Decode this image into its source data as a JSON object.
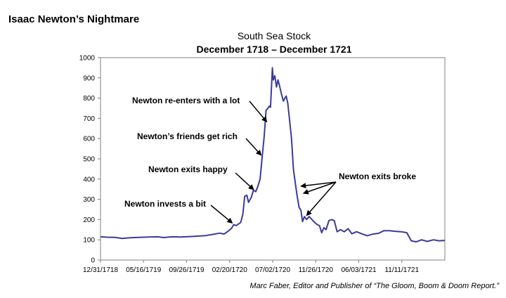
{
  "page": {
    "heading": "Isaac Newton’s Nightmare",
    "credit": "Marc Faber, Editor and Publisher of “The Gloom, Boom & Doom Report.”"
  },
  "chart_data": {
    "type": "line",
    "title": "South Sea Stock",
    "subtitle": "December 1718 – December 1721",
    "xlabel": "",
    "ylabel": "",
    "x_start": "1718-12-31",
    "x_end": "1721-12-31",
    "xticks": [
      "12/31/1718",
      "05/16/1719",
      "09/26/1719",
      "02/20/1720",
      "07/02/1720",
      "11/26/1720",
      "06/03/1721",
      "11/11/1721"
    ],
    "ylim": [
      0,
      1000
    ],
    "yticks": [
      0,
      100,
      200,
      300,
      400,
      500,
      600,
      700,
      800,
      900,
      1000
    ],
    "grid": false,
    "line_color": "#3b3b98",
    "series": [
      {
        "name": "",
        "points": [
          [
            "1718-12-31",
            115
          ],
          [
            "1719-01-20",
            113
          ],
          [
            "1719-02-15",
            112
          ],
          [
            "1719-03-10",
            107
          ],
          [
            "1719-04-05",
            110
          ],
          [
            "1719-05-01",
            112
          ],
          [
            "1719-06-01",
            114
          ],
          [
            "1719-07-01",
            115
          ],
          [
            "1719-07-20",
            111
          ],
          [
            "1719-08-15",
            115
          ],
          [
            "1719-09-10",
            114
          ],
          [
            "1719-10-10",
            116
          ],
          [
            "1719-11-05",
            118
          ],
          [
            "1719-12-01",
            121
          ],
          [
            "1719-12-25",
            127
          ],
          [
            "1720-01-15",
            133
          ],
          [
            "1720-01-28",
            128
          ],
          [
            "1720-02-08",
            140
          ],
          [
            "1720-02-20",
            155
          ],
          [
            "1720-02-28",
            175
          ],
          [
            "1720-03-07",
            170
          ],
          [
            "1720-03-14",
            178
          ],
          [
            "1720-03-21",
            185
          ],
          [
            "1720-03-28",
            225
          ],
          [
            "1720-04-03",
            315
          ],
          [
            "1720-04-10",
            320
          ],
          [
            "1720-04-15",
            285
          ],
          [
            "1720-04-24",
            310
          ],
          [
            "1720-05-01",
            345
          ],
          [
            "1720-05-08",
            338
          ],
          [
            "1720-05-15",
            365
          ],
          [
            "1720-05-22",
            400
          ],
          [
            "1720-05-28",
            500
          ],
          [
            "1720-06-04",
            610
          ],
          [
            "1720-06-10",
            740
          ],
          [
            "1720-06-15",
            748
          ],
          [
            "1720-06-20",
            760
          ],
          [
            "1720-06-24",
            755
          ],
          [
            "1720-06-30",
            950
          ],
          [
            "1720-07-03",
            890
          ],
          [
            "1720-07-08",
            910
          ],
          [
            "1720-07-13",
            855
          ],
          [
            "1720-07-18",
            890
          ],
          [
            "1720-07-23",
            860
          ],
          [
            "1720-07-29",
            820
          ],
          [
            "1720-08-04",
            785
          ],
          [
            "1720-08-09",
            800
          ],
          [
            "1720-08-13",
            810
          ],
          [
            "1720-08-18",
            775
          ],
          [
            "1720-08-24",
            690
          ],
          [
            "1720-08-30",
            600
          ],
          [
            "1720-09-05",
            450
          ],
          [
            "1720-09-11",
            380
          ],
          [
            "1720-09-17",
            315
          ],
          [
            "1720-09-23",
            260
          ],
          [
            "1720-09-29",
            245
          ],
          [
            "1720-10-04",
            190
          ],
          [
            "1720-10-10",
            215
          ],
          [
            "1720-10-17",
            200
          ],
          [
            "1720-10-25",
            215
          ],
          [
            "1720-11-03",
            200
          ],
          [
            "1720-11-12",
            185
          ],
          [
            "1720-11-20",
            175
          ],
          [
            "1720-11-27",
            170
          ],
          [
            "1720-12-04",
            135
          ],
          [
            "1720-12-11",
            160
          ],
          [
            "1720-12-18",
            150
          ],
          [
            "1720-12-27",
            195
          ],
          [
            "1721-01-05",
            200
          ],
          [
            "1721-01-13",
            195
          ],
          [
            "1721-01-22",
            140
          ],
          [
            "1721-02-02",
            150
          ],
          [
            "1721-02-14",
            140
          ],
          [
            "1721-02-26",
            155
          ],
          [
            "1721-03-10",
            130
          ],
          [
            "1721-03-25",
            140
          ],
          [
            "1721-04-10",
            130
          ],
          [
            "1721-04-28",
            120
          ],
          [
            "1721-05-15",
            128
          ],
          [
            "1721-06-03",
            132
          ],
          [
            "1721-06-20",
            145
          ],
          [
            "1721-07-08",
            145
          ],
          [
            "1721-07-26",
            142
          ],
          [
            "1721-08-14",
            140
          ],
          [
            "1721-09-01",
            135
          ],
          [
            "1721-09-15",
            95
          ],
          [
            "1721-10-01",
            90
          ],
          [
            "1721-10-18",
            100
          ],
          [
            "1721-11-05",
            92
          ],
          [
            "1721-11-25",
            100
          ],
          [
            "1721-12-12",
            95
          ],
          [
            "1721-12-31",
            97
          ]
        ]
      }
    ],
    "annotations": [
      {
        "text": "Newton invests a bit",
        "date": "1720-03-01",
        "value": 190
      },
      {
        "text": "Newton exits happy",
        "date": "1720-05-08",
        "value": 355
      },
      {
        "text": "Newton’s friends get rich",
        "date": "1720-06-01",
        "value": 525
      },
      {
        "text": "Newton re-enters with a lot",
        "date": "1720-06-19",
        "value": 690
      },
      {
        "text": "Newton exits broke",
        "targets": [
          [
            "1720-09-20",
            365
          ],
          [
            "1720-09-28",
            330
          ],
          [
            "1720-10-08",
            220
          ]
        ]
      }
    ]
  }
}
